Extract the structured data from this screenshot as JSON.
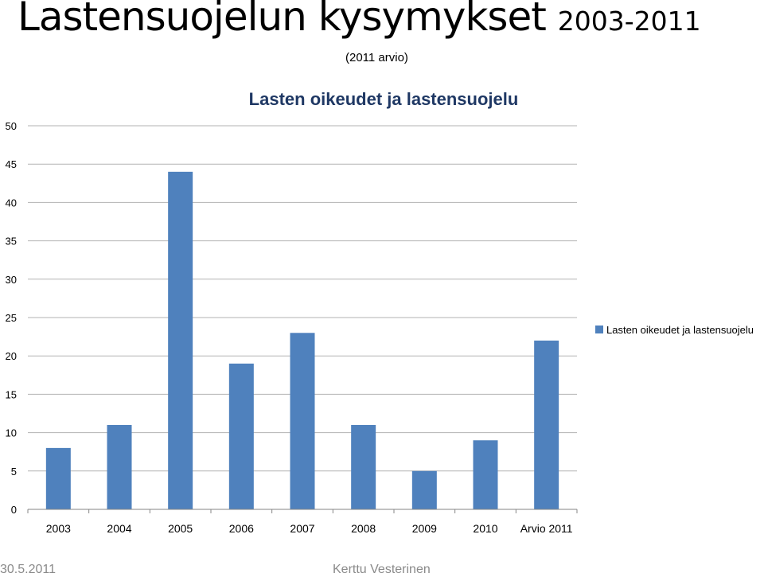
{
  "slide": {
    "title_main": "Lastensuojelun kysymykset",
    "title_years": "2003-2011",
    "subtitle": "(2011 arvio)",
    "footer_date": "30.5.2011",
    "footer_author": "Kerttu Vesterinen"
  },
  "chart_data": {
    "type": "bar",
    "title": "Lasten oikeudet ja lastensuojelu",
    "xlabel": "",
    "ylabel": "",
    "categories": [
      "2003",
      "2004",
      "2005",
      "2006",
      "2007",
      "2008",
      "2009",
      "2010",
      "Arvio 2011"
    ],
    "series": [
      {
        "name": "Lasten oikeudet ja lastensuojelu",
        "values": [
          8,
          11,
          44,
          19,
          23,
          11,
          5,
          9,
          22
        ],
        "color": "#4f81bd"
      }
    ],
    "ylim": [
      0,
      50
    ],
    "yticks": [
      0,
      5,
      10,
      15,
      20,
      25,
      30,
      35,
      40,
      45,
      50
    ],
    "grid": true,
    "legend": "right"
  }
}
